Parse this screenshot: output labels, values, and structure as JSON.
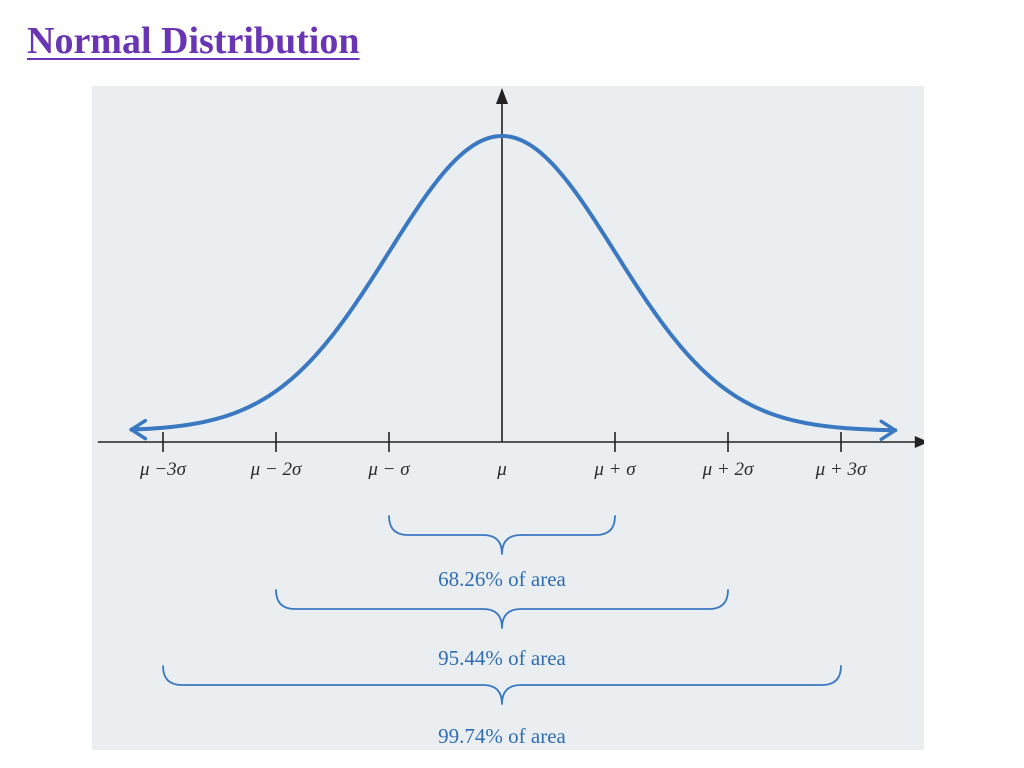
{
  "title": "Normal Distribution",
  "colors": {
    "title": "#6a35b5",
    "curve": "#3a78c2",
    "axis": "#222222",
    "brace": "#3a78c2",
    "area_text": "#2f6db3",
    "figure_background": "#eaeef1"
  },
  "chart_data": {
    "type": "line",
    "title": "",
    "xlabel": "",
    "ylabel": "",
    "distribution": "normal",
    "mean": 0,
    "std": 1,
    "xlim": [
      -3.4,
      3.6
    ],
    "grid": false,
    "axis_arrows": true,
    "curve_arrows": true,
    "ticks": [
      {
        "sigma": -3,
        "label": "μ −3σ"
      },
      {
        "sigma": -2,
        "label": "μ − 2σ"
      },
      {
        "sigma": -1,
        "label": "μ − σ"
      },
      {
        "sigma": 0,
        "label": "μ"
      },
      {
        "sigma": 1,
        "label": "μ + σ"
      },
      {
        "sigma": 2,
        "label": "μ + 2σ"
      },
      {
        "sigma": 3,
        "label": "μ + 3σ"
      }
    ],
    "areas": [
      {
        "from": -1,
        "to": 1,
        "percent": 68.26,
        "label": "68.26% of area"
      },
      {
        "from": -2,
        "to": 2,
        "percent": 95.44,
        "label": "95.44% of area"
      },
      {
        "from": -3,
        "to": 3,
        "percent": 99.74,
        "label": "99.74% of area"
      }
    ]
  }
}
